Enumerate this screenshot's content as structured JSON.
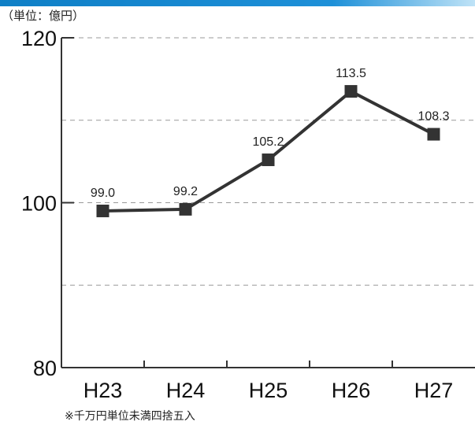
{
  "unit_label": "（単位：億円）",
  "footnote": "※千万円単位未満四捨五入",
  "colors": {
    "line": "#333333",
    "axis": "#333333",
    "grid": "#999999",
    "header": "#1e90d8"
  },
  "chart_data": {
    "type": "line",
    "title": "",
    "xlabel": "",
    "ylabel": "",
    "categories": [
      "H23",
      "H24",
      "H25",
      "H26",
      "H27"
    ],
    "series": [
      {
        "values": [
          99.0,
          99.2,
          105.2,
          113.5,
          108.3
        ],
        "labels": [
          "99.0",
          "99.2",
          "105.2",
          "113.5",
          "108.3"
        ]
      }
    ],
    "ylim": [
      80,
      120
    ],
    "yticks": [
      "80",
      "100",
      "120"
    ],
    "grid": "dashed horizontal at 90, 100, 110, 120",
    "marker": "square"
  }
}
